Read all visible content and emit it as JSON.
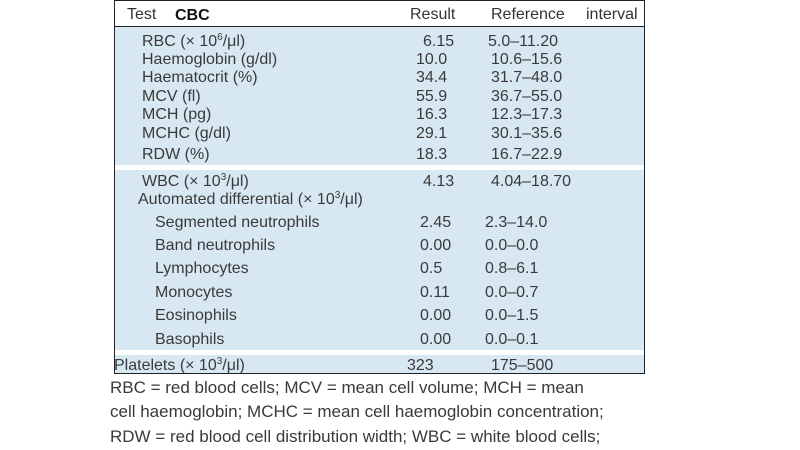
{
  "header": {
    "test_label": "Test",
    "cbc_label": "CBC",
    "result_label": "Result",
    "reference_label": "Reference",
    "interval_label": "interval"
  },
  "rbc_section": [
    {
      "name": "RBC (× 10",
      "sup": "6",
      "suffix": "/μl)",
      "result": "6.15",
      "reference": "5.0–11.20"
    },
    {
      "name": "Haemoglobin (g/dl)",
      "result": "10.0",
      "reference": "10.6–15.6"
    },
    {
      "name": "Haematocrit (%)",
      "result": "34.4",
      "reference": "31.7–48.0"
    },
    {
      "name": "MCV (fl)",
      "result": "55.9",
      "reference": "36.7–55.0"
    },
    {
      "name": "MCH (pg)",
      "result": "16.3",
      "reference": "12.3–17.3"
    },
    {
      "name": "MCHC (g/dl)",
      "result": "29.1",
      "reference": "30.1–35.6"
    },
    {
      "name": "RDW (%)",
      "result": "18.3",
      "reference": "16.7–22.9"
    }
  ],
  "wbc_section": {
    "wbc": {
      "name": "WBC (× 10",
      "sup": "3",
      "suffix": "/μl)",
      "result": "4.13",
      "reference": "4.04–18.70"
    },
    "differential_label": {
      "name": "Automated differential (× 10",
      "sup": "3",
      "suffix": "/μl)"
    },
    "differential": [
      {
        "name": "Segmented neutrophils",
        "result": "2.45",
        "reference": "2.3–14.0"
      },
      {
        "name": "Band neutrophils",
        "result": "0.00",
        "reference": "0.0–0.0"
      },
      {
        "name": "Lymphocytes",
        "result": "0.5",
        "reference": "0.8–6.1"
      },
      {
        "name": "Monocytes",
        "result": "0.11",
        "reference": "0.0–0.7"
      },
      {
        "name": "Eosinophils",
        "result": "0.00",
        "reference": "0.0–1.5"
      },
      {
        "name": "Basophils",
        "result": "0.00",
        "reference": "0.0–0.1"
      }
    ]
  },
  "platelets": {
    "name": "Platelets (× 10",
    "sup": "3",
    "suffix": "/μl)",
    "result": "323",
    "reference": "175–500"
  },
  "footnotes": [
    "RBC = red blood cells; MCV = mean cell volume; MCH = mean",
    "cell haemoglobin; MCHC = mean cell haemoglobin concentration;",
    "RDW = red blood cell distribution width; WBC = white blood cells;"
  ]
}
